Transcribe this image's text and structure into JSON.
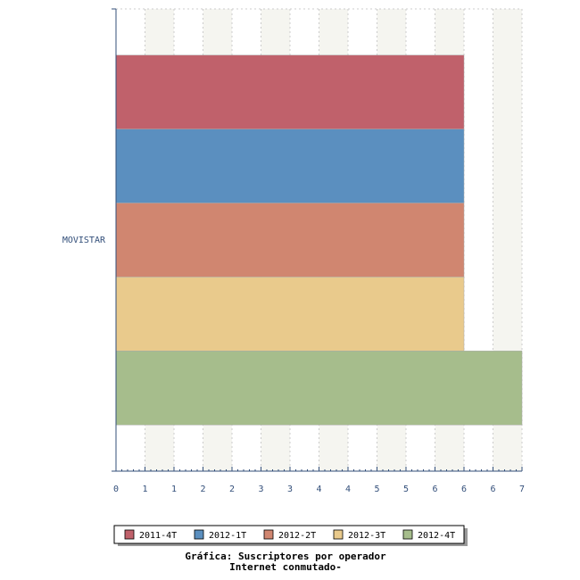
{
  "chart_data": {
    "type": "hbar",
    "title": "Gráfica: Suscriptores por operador",
    "subtitle": "Internet conmutado-",
    "categories": [
      "MOVISTAR"
    ],
    "series": [
      {
        "name": "2011-4T",
        "color": "#c0616b",
        "values": [
          6
        ]
      },
      {
        "name": "2012-1T",
        "color": "#5b8fbf",
        "values": [
          6
        ]
      },
      {
        "name": "2012-2T",
        "color": "#d08670",
        "values": [
          6
        ]
      },
      {
        "name": "2012-3T",
        "color": "#e9ca8c",
        "values": [
          6
        ]
      },
      {
        "name": "2012-4T",
        "color": "#a6bd8c",
        "values": [
          7
        ]
      }
    ],
    "xlim": [
      0,
      7
    ],
    "xticks": [
      0,
      {
        "value": 0.5,
        "label": "1"
      },
      1,
      {
        "value": 1.5,
        "label": "2"
      },
      2,
      {
        "value": 2.5,
        "label": "3"
      },
      3,
      {
        "value": 3.5,
        "label": "4"
      },
      4,
      {
        "value": 4.5,
        "label": "5"
      },
      5,
      {
        "value": 5.5,
        "label": "6"
      },
      6,
      {
        "value": 6.5,
        "label": "6"
      },
      7
    ],
    "grid": true,
    "legend": "bottom"
  }
}
